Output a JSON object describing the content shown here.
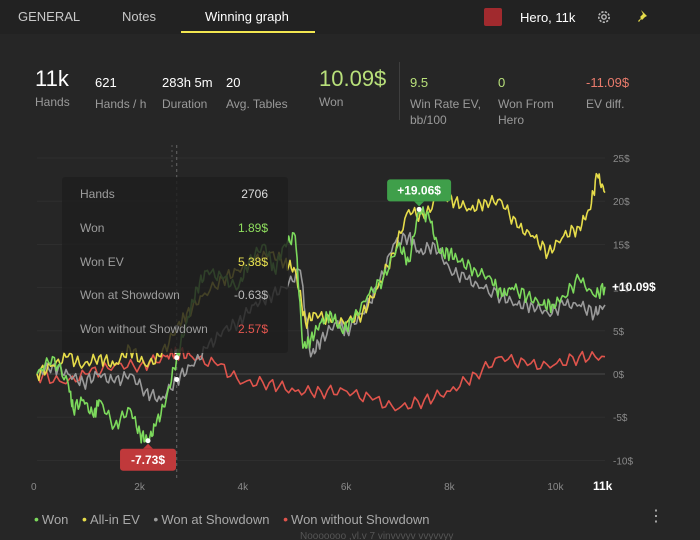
{
  "tabs": [
    {
      "label": "GENERAL"
    },
    {
      "label": "Notes"
    },
    {
      "label": "Winning graph"
    }
  ],
  "player": {
    "label": "Hero, 11k",
    "color": "#a12a2e"
  },
  "stats": [
    {
      "value": "11k",
      "label": "Hands"
    },
    {
      "value": "621",
      "label": "Hands / h"
    },
    {
      "value": "283h 5m",
      "label": "Duration"
    },
    {
      "value": "20",
      "label": "Avg. Tables"
    },
    {
      "value": "10.09$",
      "label": "Won",
      "color": "#b8e07a"
    },
    {
      "value": "9.5",
      "label": "Win Rate EV, bb/100",
      "color": "#b8e07a"
    },
    {
      "value": "0",
      "label": "Won From Hero",
      "color": "#b8e07a"
    },
    {
      "value": "-11.09$",
      "label": "EV diff.",
      "color": "#e97b6c"
    }
  ],
  "tooltip": [
    {
      "key": "Hands",
      "value": "2706",
      "color": "#dddddd"
    },
    {
      "key": "Won",
      "value": "1.89$",
      "color": "#8fde5e"
    },
    {
      "key": "Won EV",
      "value": "5.38$",
      "color": "#e9e150"
    },
    {
      "key": "Won at Showdown",
      "value": "-0.63$",
      "color": "#bbbbbb"
    },
    {
      "key": "Won without Showdown",
      "value": "2.57$",
      "color": "#e4564f"
    }
  ],
  "legend": [
    {
      "label": "Won",
      "color": "#7cd95c"
    },
    {
      "label": "All-in EV",
      "color": "#e6dc4a"
    },
    {
      "label": "Won at Showdown",
      "color": "#9a9a9a"
    },
    {
      "label": "Won without Showdown",
      "color": "#e0544c"
    }
  ],
  "bottom_partial": "Nooooooo  ,vl.v 7  vinvvvyv vvyvvyy",
  "chart_data": {
    "type": "line",
    "x_unit": "hands",
    "xlim": [
      0,
      11000
    ],
    "ylim": [
      -10,
      25
    ],
    "x_tick_labels": [
      "0",
      "2k",
      "4k",
      "6k",
      "8k",
      "10k",
      "11k"
    ],
    "y_tick_labels": [
      "25$",
      "20$",
      "15$",
      "10$",
      "5$",
      "0$",
      "-5$",
      "-10$"
    ],
    "annotations": [
      {
        "text": "+19.06$",
        "x": 7400,
        "y": 19.06,
        "color": "#3f9f4a"
      },
      {
        "text": "-7.73$",
        "x": 2150,
        "y": -7.73,
        "color": "#c0393b"
      },
      {
        "text": "+10.09$",
        "x": 11000,
        "y": 10.09
      }
    ],
    "crosshair_x": 2706,
    "series": [
      {
        "name": "Won",
        "color": "#7cd95c",
        "x": [
          0,
          300,
          600,
          700,
          900,
          1100,
          1200,
          1500,
          1800,
          2000,
          2150,
          2300,
          2500,
          2706,
          2900,
          3100,
          3300,
          3600,
          3900,
          4100,
          4400,
          4600,
          4800,
          5000,
          5150,
          5300,
          5500,
          5700,
          5900,
          6100,
          6400,
          6700,
          7000,
          7200,
          7400,
          7600,
          7800,
          8000,
          8200,
          8500,
          8800,
          9000,
          9200,
          9500,
          9800,
          10000,
          10200,
          10500,
          10800,
          11000
        ],
        "y": [
          0,
          2,
          -1,
          -4,
          -3,
          -5,
          -3,
          -6,
          -4,
          -7,
          -7.73,
          -6,
          -3,
          1.89,
          6,
          10,
          12,
          11,
          10,
          13,
          15,
          12,
          15,
          16,
          3,
          4,
          6,
          7,
          5,
          6,
          9,
          11,
          15,
          13,
          19.06,
          18,
          14,
          14,
          13,
          12,
          11,
          9,
          10,
          9,
          8,
          8,
          9,
          11,
          9,
          10.09
        ]
      },
      {
        "name": "All-in EV",
        "color": "#e6dc4a",
        "x": [
          0,
          300,
          600,
          900,
          1200,
          1500,
          1800,
          2100,
          2400,
          2706,
          2900,
          3200,
          3600,
          3900,
          4200,
          4500,
          4800,
          5000,
          5200,
          5400,
          5700,
          6000,
          6300,
          6600,
          6900,
          7200,
          7500,
          7800,
          8100,
          8400,
          8700,
          9000,
          9300,
          9600,
          9900,
          10200,
          10500,
          10700,
          10850,
          11000
        ],
        "y": [
          0,
          1,
          2,
          1,
          2,
          1,
          3,
          1,
          2,
          5.38,
          7,
          9,
          11,
          12,
          13,
          14,
          13,
          12,
          6,
          7,
          6,
          6,
          7,
          10,
          14,
          19,
          18,
          21,
          20,
          19,
          20,
          20,
          17,
          16,
          14,
          16,
          17,
          19,
          23,
          21
        ]
      },
      {
        "name": "Won at Showdown",
        "color": "#9a9a9a",
        "x": [
          0,
          300,
          600,
          900,
          1200,
          1500,
          1800,
          2100,
          2400,
          2706,
          3000,
          3300,
          3600,
          3900,
          4200,
          4500,
          4800,
          5100,
          5300,
          5500,
          5800,
          6000,
          6300,
          6600,
          6900,
          7200,
          7400,
          7700,
          8000,
          8300,
          8600,
          9000,
          9300,
          9600,
          9900,
          10200,
          10500,
          10800,
          11000
        ],
        "y": [
          0,
          1,
          0,
          -1,
          0,
          -1,
          0,
          -2,
          -3,
          -0.63,
          1,
          3,
          5,
          6,
          8,
          9,
          10,
          12,
          2,
          4,
          6,
          5,
          7,
          10,
          15,
          16,
          14,
          15,
          12,
          11,
          10,
          9,
          8,
          8,
          7,
          8,
          8,
          7,
          8
        ]
      },
      {
        "name": "Won without Showdown",
        "color": "#e0544c",
        "x": [
          0,
          500,
          1000,
          1500,
          2000,
          2500,
          2706,
          3000,
          3500,
          4000,
          4500,
          5000,
          5500,
          6000,
          6500,
          7000,
          7500,
          8000,
          8500,
          9000,
          9500,
          10000,
          10500,
          11000
        ],
        "y": [
          0,
          -1,
          0,
          1,
          1,
          2,
          2.57,
          2,
          1,
          -1,
          -1,
          -2,
          -2,
          -2,
          -3,
          -4,
          -3,
          -2,
          0,
          2,
          1,
          1,
          2,
          2
        ]
      }
    ]
  }
}
